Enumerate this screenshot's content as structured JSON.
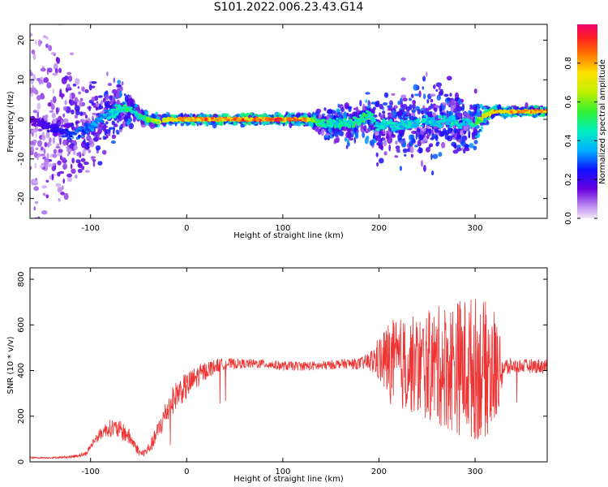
{
  "title": "S101.2022.006.23.43.G14",
  "chart_data": [
    {
      "type": "heatmap",
      "xlabel": "Height of straight line (km)",
      "ylabel": "Frequency (Hz)",
      "xlim": [
        -163,
        375
      ],
      "ylim": [
        -25,
        24
      ],
      "xticks": [
        -100,
        0,
        100,
        200,
        300
      ],
      "yticks": [
        -20,
        -10,
        0,
        10,
        20
      ],
      "colorbar": {
        "label": "Normalized spectral amplitude",
        "ticks": [
          0.0,
          0.2,
          0.4,
          0.6,
          0.8
        ],
        "range": [
          0,
          1
        ],
        "colormap": "rainbow"
      },
      "ridge": {
        "x": [
          -163,
          -120,
          -100,
          -85,
          -75,
          -65,
          -60,
          -55,
          -50,
          -40,
          -30,
          -20,
          -10,
          0,
          20,
          40,
          60,
          80,
          100,
          120,
          130,
          140,
          160,
          180,
          190,
          200,
          210,
          220,
          230,
          240,
          250,
          260,
          270,
          280,
          290,
          300,
          310,
          320,
          340,
          360,
          375
        ],
        "y": [
          0,
          -4,
          -2,
          1,
          2,
          3,
          3,
          2,
          1,
          0,
          -0.5,
          0,
          0,
          0,
          0,
          0,
          0,
          0,
          0,
          0,
          0,
          -1,
          -1,
          -0.5,
          1,
          -2,
          -1,
          -2,
          -1,
          -1,
          0,
          -1,
          0,
          -1,
          -1,
          -1,
          1,
          2,
          2,
          2,
          2
        ],
        "amp": [
          0.15,
          0.3,
          0.35,
          0.4,
          0.45,
          0.5,
          0.55,
          0.5,
          0.5,
          0.6,
          0.7,
          0.8,
          0.85,
          0.85,
          0.9,
          0.9,
          0.9,
          0.9,
          0.95,
          0.9,
          0.7,
          0.5,
          0.5,
          0.5,
          0.55,
          0.45,
          0.45,
          0.45,
          0.45,
          0.45,
          0.45,
          0.45,
          0.45,
          0.45,
          0.45,
          0.5,
          0.8,
          0.85,
          0.85,
          0.85,
          0.85
        ],
        "spread": [
          12,
          8,
          5,
          4,
          4,
          3,
          2,
          1.5,
          1,
          0.8,
          0.6,
          0.5,
          0.5,
          0.5,
          0.5,
          0.5,
          0.5,
          0.5,
          0.5,
          0.5,
          0.8,
          1.5,
          2,
          2,
          3,
          4,
          4,
          4,
          4,
          5,
          5,
          4,
          4,
          4,
          3,
          3,
          1,
          0.5,
          0.5,
          0.5,
          0.5
        ]
      }
    },
    {
      "type": "line",
      "xlabel": "Height of straight line (km)",
      "ylabel": "SNR (10 * v/v)",
      "xlim": [
        -163,
        375
      ],
      "ylim": [
        0,
        850
      ],
      "xticks": [
        -100,
        0,
        100,
        200,
        300
      ],
      "yticks": [
        0,
        200,
        400,
        600,
        800
      ],
      "color": "#ee3333",
      "series": [
        {
          "x": [
            -163,
            -140,
            -120,
            -105,
            -95,
            -85,
            -78,
            -70,
            -62,
            -55,
            -48,
            -42,
            -36,
            -28,
            -20,
            -10,
            0,
            10,
            20,
            30,
            40,
            60,
            80,
            100,
            120,
            140,
            160,
            180,
            190,
            200,
            210,
            220,
            240,
            260,
            280,
            300,
            320,
            330,
            340,
            350,
            360,
            375
          ],
          "y": [
            18,
            18,
            22,
            35,
            100,
            140,
            150,
            140,
            120,
            80,
            35,
            45,
            80,
            150,
            230,
            300,
            330,
            370,
            400,
            420,
            430,
            430,
            430,
            420,
            420,
            420,
            430,
            430,
            440,
            450,
            440,
            430,
            420,
            420,
            420,
            410,
            400,
            410,
            420,
            420,
            420,
            420
          ],
          "noise": [
            4,
            4,
            6,
            10,
            20,
            30,
            40,
            40,
            40,
            25,
            15,
            20,
            30,
            50,
            60,
            60,
            60,
            50,
            40,
            30,
            25,
            20,
            20,
            20,
            20,
            20,
            20,
            25,
            40,
            100,
            180,
            200,
            220,
            260,
            300,
            320,
            280,
            50,
            30,
            30,
            30,
            35
          ]
        }
      ]
    }
  ]
}
